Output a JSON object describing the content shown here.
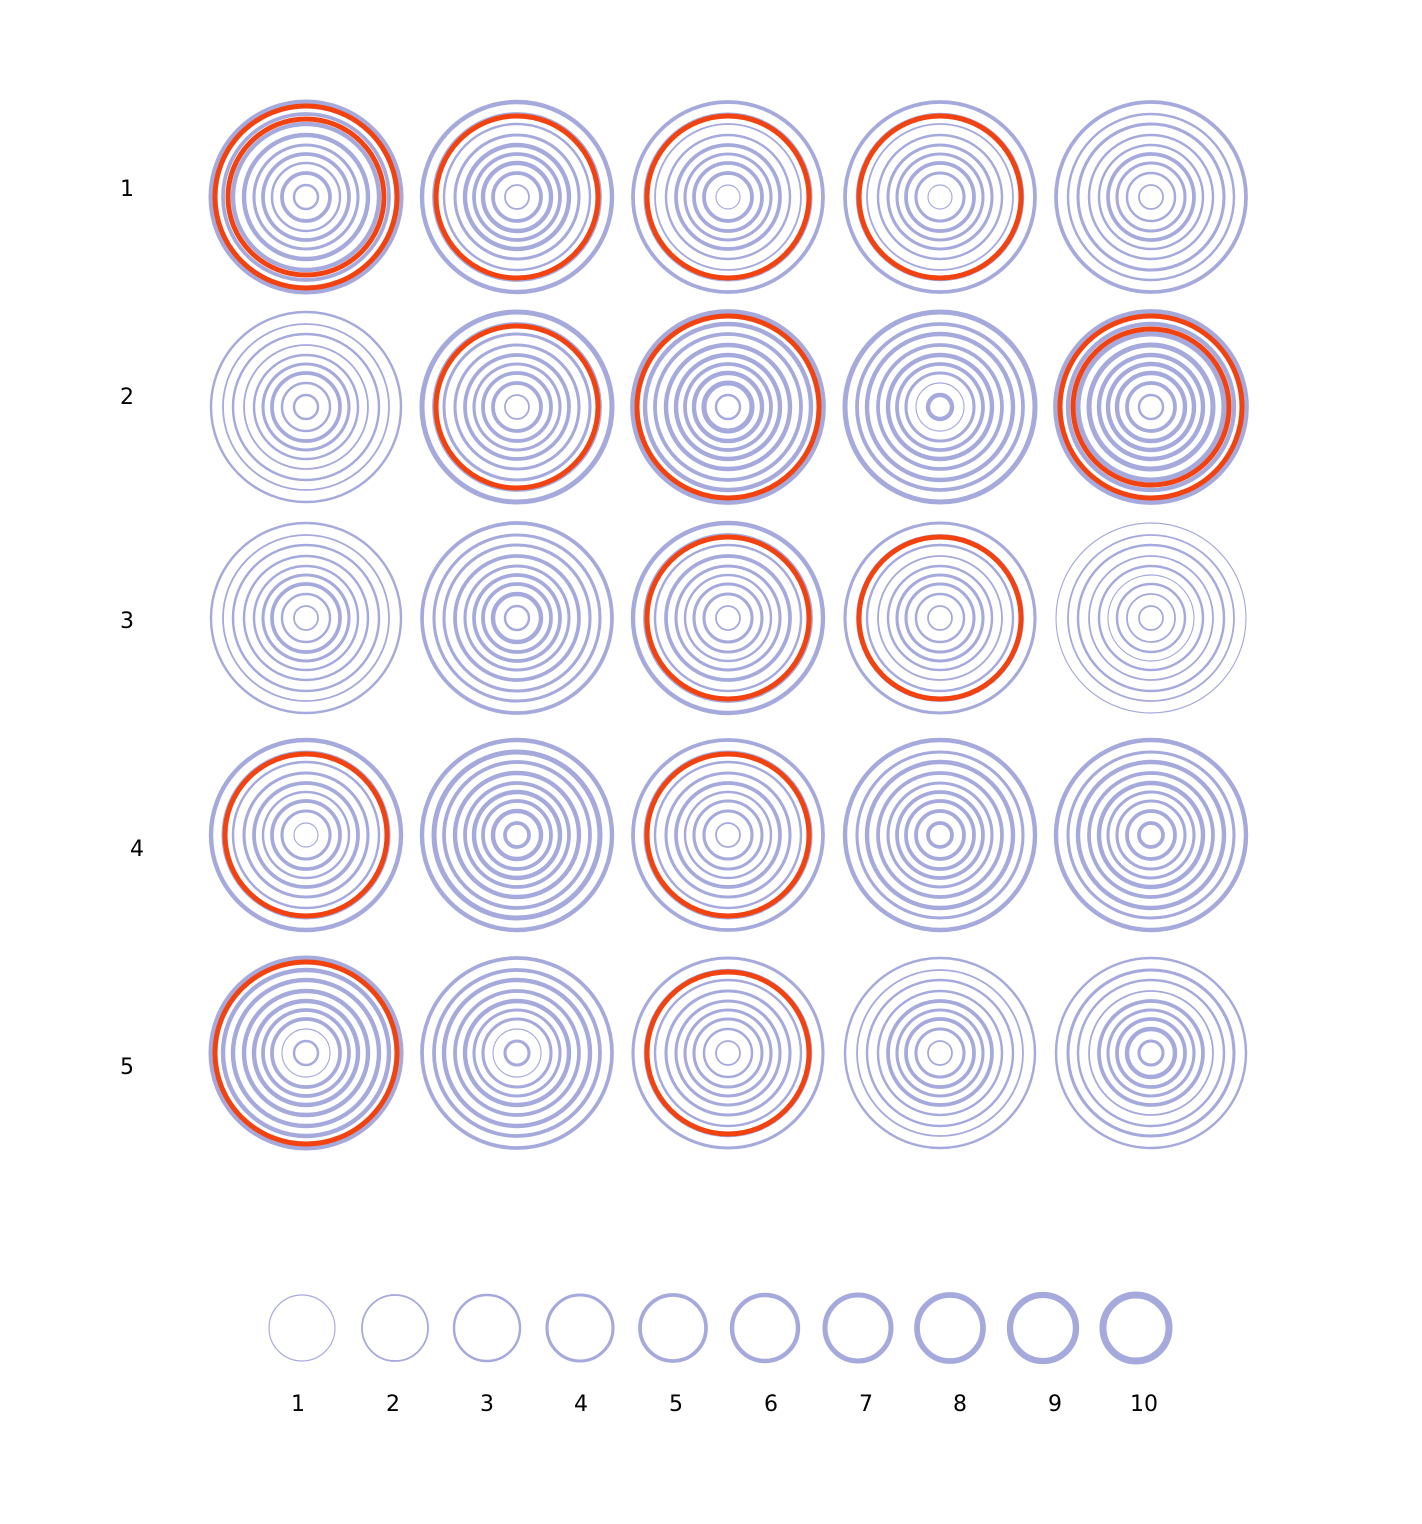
{
  "chart_data": {
    "type": "concentric-ring-matrix",
    "colors": {
      "ring": "#a6a9dc",
      "highlight": "#f1420f",
      "background": "#ffffff"
    },
    "row_labels": [
      "1",
      "2",
      "3",
      "4",
      "5"
    ],
    "legend": {
      "labels": [
        "1",
        "2",
        "3",
        "4",
        "5",
        "6",
        "7",
        "8",
        "9",
        "10"
      ],
      "thickness_levels": [
        1,
        2,
        3,
        4,
        5,
        6,
        7,
        8,
        9,
        10
      ]
    },
    "rows": [
      [
        {
          "rings": [
            7,
            5,
            6,
            6,
            4,
            5,
            3,
            5,
            3
          ],
          "highlight": [
            9,
            7
          ]
        },
        {
          "rings": [
            6,
            5,
            3,
            4,
            6,
            5,
            6,
            5,
            2
          ],
          "highlight": [
            8
          ]
        },
        {
          "rings": [
            5,
            4,
            2,
            3,
            5,
            4,
            5,
            5,
            1
          ],
          "highlight": [
            8
          ]
        },
        {
          "rings": [
            5,
            3,
            2,
            3,
            4,
            4,
            5,
            4,
            1
          ],
          "highlight": [
            8
          ]
        },
        {
          "rings": [
            5,
            3,
            4,
            3,
            3,
            5,
            4,
            3,
            2
          ]
        }
      ],
      [
        {
          "rings": [
            3,
            2,
            3,
            2,
            3,
            4,
            5,
            3,
            3
          ]
        },
        {
          "rings": [
            7,
            5,
            4,
            4,
            5,
            4,
            5,
            5,
            2
          ],
          "highlight": [
            8
          ]
        },
        {
          "rings": [
            8,
            6,
            5,
            6,
            6,
            5,
            6,
            7,
            3
          ],
          "highlight": [
            9
          ]
        },
        {
          "rings": [
            7,
            5,
            6,
            5,
            6,
            5,
            4,
            1,
            6
          ]
        },
        {
          "rings": [
            8,
            6,
            7,
            7,
            6,
            6,
            6,
            5,
            3
          ],
          "highlight": [
            9,
            7
          ]
        }
      ],
      [
        {
          "rings": [
            3,
            2,
            3,
            3,
            3,
            4,
            5,
            3,
            2
          ]
        },
        {
          "rings": [
            5,
            4,
            4,
            5,
            4,
            5,
            5,
            6,
            3
          ]
        },
        {
          "rings": [
            6,
            5,
            3,
            5,
            4,
            3,
            4,
            4,
            2
          ],
          "highlight": [
            8
          ]
        },
        {
          "rings": [
            4,
            2,
            3,
            2,
            3,
            4,
            4,
            3,
            2
          ],
          "highlight": [
            8
          ]
        },
        {
          "rings": [
            1,
            2,
            3,
            2,
            3,
            1,
            3,
            2,
            2
          ]
        }
      ],
      [
        {
          "rings": [
            6,
            4,
            3,
            4,
            5,
            3,
            5,
            4,
            1
          ],
          "highlight": [
            8
          ]
        },
        {
          "rings": [
            6,
            7,
            5,
            6,
            5,
            6,
            5,
            6,
            5
          ]
        },
        {
          "rings": [
            5,
            4,
            3,
            4,
            5,
            3,
            4,
            4,
            2
          ],
          "highlight": [
            8
          ]
        },
        {
          "rings": [
            6,
            4,
            6,
            5,
            4,
            5,
            5,
            5,
            5
          ]
        },
        {
          "rings": [
            6,
            4,
            6,
            5,
            6,
            4,
            4,
            5,
            5
          ]
        }
      ],
      [
        {
          "rings": [
            7,
            6,
            6,
            6,
            6,
            5,
            5,
            1,
            3
          ],
          "highlight": [
            9
          ]
        },
        {
          "rings": [
            5,
            5,
            6,
            5,
            6,
            4,
            4,
            1,
            4
          ]
        },
        {
          "rings": [
            4,
            3,
            3,
            4,
            4,
            4,
            4,
            3,
            2
          ],
          "highlight": [
            8
          ]
        },
        {
          "rings": [
            3,
            2,
            3,
            3,
            5,
            4,
            5,
            4,
            2
          ]
        },
        {
          "rings": [
            3,
            4,
            3,
            2,
            5,
            4,
            5,
            6,
            4
          ]
        }
      ]
    ]
  }
}
